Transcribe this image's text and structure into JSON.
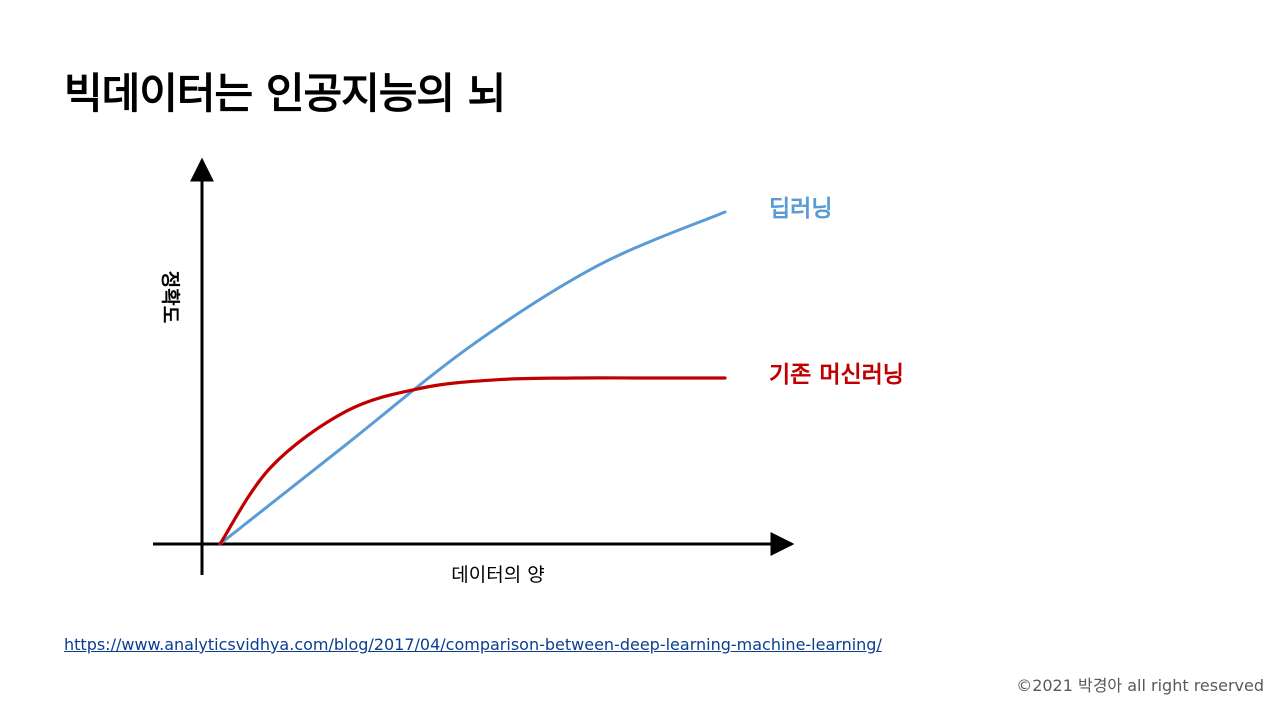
{
  "slide": {
    "title": "빅데이터는 인공지능의 뇌",
    "source_link": "https://www.analyticsvidhya.com/blog/2017/04/comparison-between-deep-learning-machine-learning/",
    "copyright": "©2021 박경아 all right reserved"
  },
  "chart_data": {
    "type": "line",
    "xlabel": "데이터의 양",
    "ylabel": "정확도",
    "xlim": [
      0,
      100
    ],
    "ylim": [
      0,
      100
    ],
    "grid": false,
    "ticks": false,
    "series": [
      {
        "name": "딥러닝",
        "color": "#5b9bd5",
        "x": [
          0,
          25,
          50,
          75,
          100
        ],
        "y": [
          0,
          30,
          60,
          84,
          100
        ]
      },
      {
        "name": "기존 머신러닝",
        "color": "#c00000",
        "x": [
          0,
          10,
          25,
          40,
          55,
          70,
          85,
          100
        ],
        "y": [
          0,
          23,
          40,
          47,
          49.5,
          50,
          50,
          50
        ]
      }
    ]
  }
}
